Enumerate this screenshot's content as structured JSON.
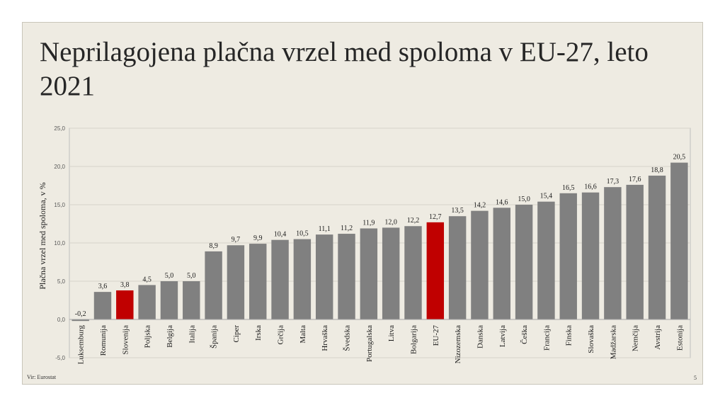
{
  "slide": {
    "title": "Neprilagojena plačna vrzel med spoloma v EU-27, leto 2021",
    "source": "Vir: Eurostat",
    "page_number": "5"
  },
  "colors": {
    "bar_default": "#808080",
    "bar_highlight": "#c00000",
    "slide_bg": "#eeebe2"
  },
  "chart_data": {
    "type": "bar",
    "title": "",
    "xlabel": "",
    "ylabel": "Plačna vrzel med spoloma, v %",
    "ylim": [
      -5,
      25
    ],
    "yticks": [
      "-5,0",
      "0,0",
      "5,0",
      "10,0",
      "15,0",
      "20,0",
      "25,0"
    ],
    "ytick_values": [
      -5,
      0,
      5,
      10,
      15,
      20,
      25
    ],
    "grid": true,
    "categories": [
      "Luksemburg",
      "Romunija",
      "Slovenija",
      "Poljska",
      "Belgija",
      "Italija",
      "Španija",
      "Ciper",
      "Irska",
      "Grčija",
      "Malta",
      "Hrvaška",
      "Švedska",
      "Portugalska",
      "Litva",
      "Bolgarija",
      "EU-27",
      "Nizozemska",
      "Danska",
      "Latvija",
      "Češka",
      "Francija",
      "Finska",
      "Slovaška",
      "Madžarska",
      "Nemčija",
      "Avstrija",
      "Estonija"
    ],
    "values": [
      -0.2,
      3.6,
      3.8,
      4.5,
      5.0,
      5.0,
      8.9,
      9.7,
      9.9,
      10.4,
      10.5,
      11.1,
      11.2,
      11.9,
      12.0,
      12.2,
      12.7,
      13.5,
      14.2,
      14.6,
      15.0,
      15.4,
      16.5,
      16.6,
      17.3,
      17.6,
      18.8,
      20.5
    ],
    "data_labels": [
      "-0,2",
      "3,6",
      "3,8",
      "4,5",
      "5,0",
      "5,0",
      "8,9",
      "9,7",
      "9,9",
      "10,4",
      "10,5",
      "11,1",
      "11,2",
      "11,9",
      "12,0",
      "12,2",
      "12,7",
      "13,5",
      "14,2",
      "14,6",
      "15,0",
      "15,4",
      "16,5",
      "16,6",
      "17,3",
      "17,6",
      "18,8",
      "20,5"
    ],
    "highlighted": [
      "Slovenija",
      "EU-27"
    ]
  }
}
